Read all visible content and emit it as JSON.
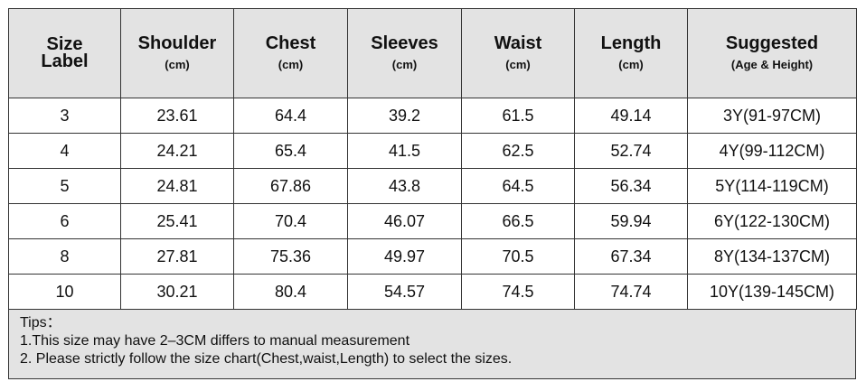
{
  "table": {
    "header": [
      {
        "title": "Size Label"
      },
      {
        "title": "Shoulder",
        "unit": "(cm)"
      },
      {
        "title": "Chest",
        "unit": "(cm)"
      },
      {
        "title": "Sleeves",
        "unit": "(cm)"
      },
      {
        "title": "Waist",
        "unit": "(cm)"
      },
      {
        "title": "Length",
        "unit": "(cm)"
      },
      {
        "title": "Suggested",
        "unit": "(Age & Height)"
      }
    ],
    "rows": [
      [
        3,
        23.61,
        64.4,
        39.2,
        61.5,
        49.14,
        "3Y(91-97CM)"
      ],
      [
        4,
        24.21,
        65.4,
        41.5,
        62.5,
        52.74,
        "4Y(99-112CM)"
      ],
      [
        5,
        24.81,
        67.86,
        43.8,
        64.5,
        56.34,
        "5Y(114-119CM)"
      ],
      [
        6,
        25.41,
        70.4,
        46.07,
        66.5,
        59.94,
        "6Y(122-130CM)"
      ],
      [
        8,
        27.81,
        75.36,
        49.97,
        70.5,
        67.34,
        "8Y(134-137CM)"
      ],
      [
        10,
        30.21,
        80.4,
        54.57,
        74.5,
        74.74,
        "10Y(139-145CM)"
      ]
    ],
    "tips": [
      "Tips：",
      "1.This size may have 2–3CM differs to manual measurement",
      "2. Please strictly follow the size chart(Chest,waist,Length) to select the sizes."
    ]
  }
}
